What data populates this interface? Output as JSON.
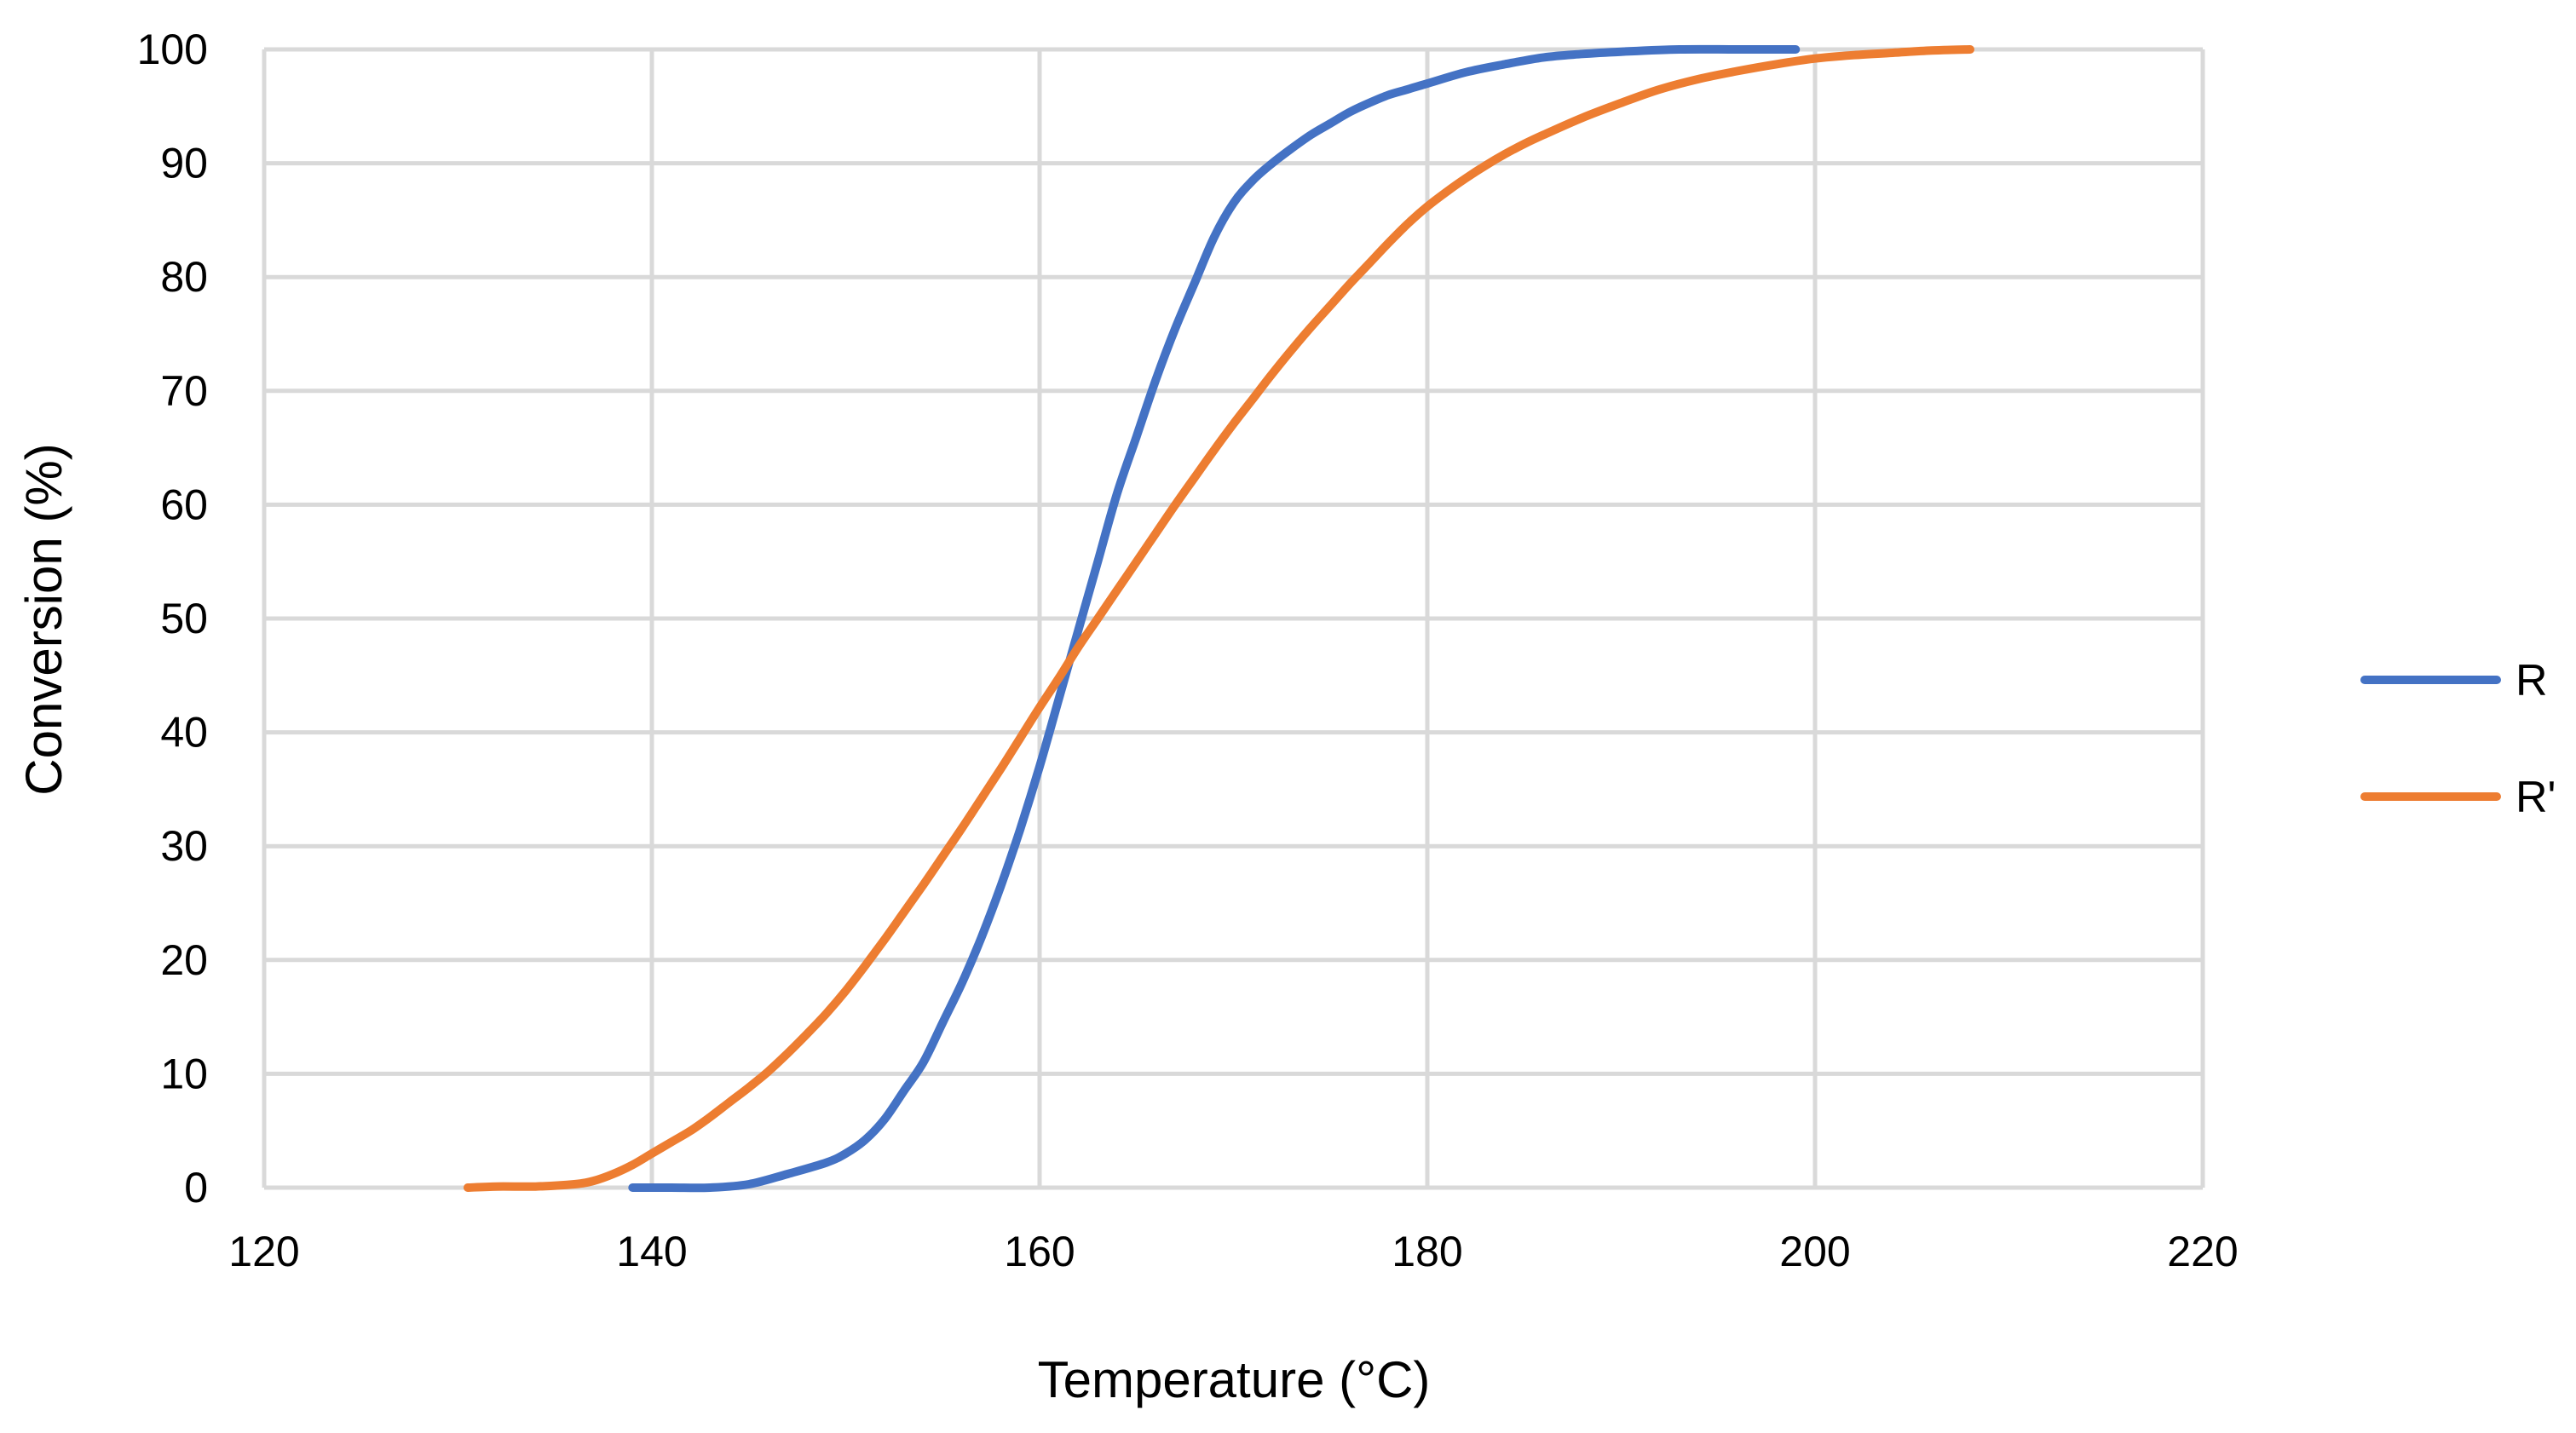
{
  "chart_data": {
    "type": "line",
    "title": "",
    "xlabel": "Temperature (°C)",
    "ylabel": "Conversion (%)",
    "xlim": [
      120,
      220
    ],
    "ylim": [
      0,
      100
    ],
    "xticks": [
      120,
      140,
      160,
      180,
      200,
      220
    ],
    "yticks": [
      0,
      10,
      20,
      30,
      40,
      50,
      60,
      70,
      80,
      90,
      100
    ],
    "grid": true,
    "legend": "right",
    "series": [
      {
        "name": "R",
        "color": "#4472C4",
        "x": [
          139,
          141,
          143,
          145,
          147,
          149,
          150,
          151,
          152,
          153,
          154,
          155,
          156,
          157,
          158,
          159,
          160,
          161,
          162,
          163,
          164,
          165,
          166,
          167,
          168,
          169,
          170,
          171,
          172,
          173,
          174,
          175,
          176,
          177,
          178,
          179,
          180,
          182,
          184,
          186,
          188,
          190,
          193,
          196,
          199
        ],
        "y": [
          0,
          0,
          0,
          0.3,
          1.2,
          2.2,
          3,
          4.2,
          6,
          8.5,
          11,
          14.5,
          18,
          22,
          26.5,
          31.5,
          37,
          43,
          49,
          55,
          61,
          66,
          71,
          75.5,
          79.5,
          83.5,
          86.5,
          88.5,
          90,
          91.3,
          92.5,
          93.5,
          94.5,
          95.3,
          96,
          96.5,
          97,
          98,
          98.7,
          99.3,
          99.6,
          99.8,
          100,
          100,
          100
        ]
      },
      {
        "name": "R'",
        "color": "#ED7D31",
        "x": [
          130.5,
          132,
          134,
          136,
          137,
          138,
          139,
          140,
          141,
          142,
          143,
          144,
          145,
          146,
          147,
          148,
          149,
          150,
          151,
          152,
          153,
          154,
          155,
          156,
          157,
          158,
          159,
          160,
          161,
          162,
          163,
          164,
          165,
          166,
          167,
          168,
          169,
          170,
          171,
          172,
          173,
          174,
          175,
          176,
          177,
          178,
          179,
          180,
          181,
          182,
          183,
          184,
          185,
          186,
          188,
          190,
          192,
          194,
          196,
          198,
          200,
          202,
          204,
          206,
          208
        ],
        "y": [
          0,
          0.1,
          0.1,
          0.3,
          0.6,
          1.2,
          2,
          3,
          4,
          5,
          6.2,
          7.5,
          8.8,
          10.2,
          11.8,
          13.5,
          15.3,
          17.3,
          19.5,
          21.8,
          24.2,
          26.6,
          29.1,
          31.6,
          34.2,
          36.8,
          39.5,
          42.2,
          44.8,
          47.5,
          50,
          52.5,
          55,
          57.5,
          60,
          62.4,
          64.8,
          67.1,
          69.3,
          71.5,
          73.6,
          75.6,
          77.5,
          79.4,
          81.2,
          83,
          84.7,
          86.2,
          87.5,
          88.7,
          89.8,
          90.8,
          91.7,
          92.5,
          94,
          95.3,
          96.5,
          97.4,
          98.1,
          98.7,
          99.2,
          99.5,
          99.7,
          99.9,
          100
        ]
      }
    ]
  }
}
